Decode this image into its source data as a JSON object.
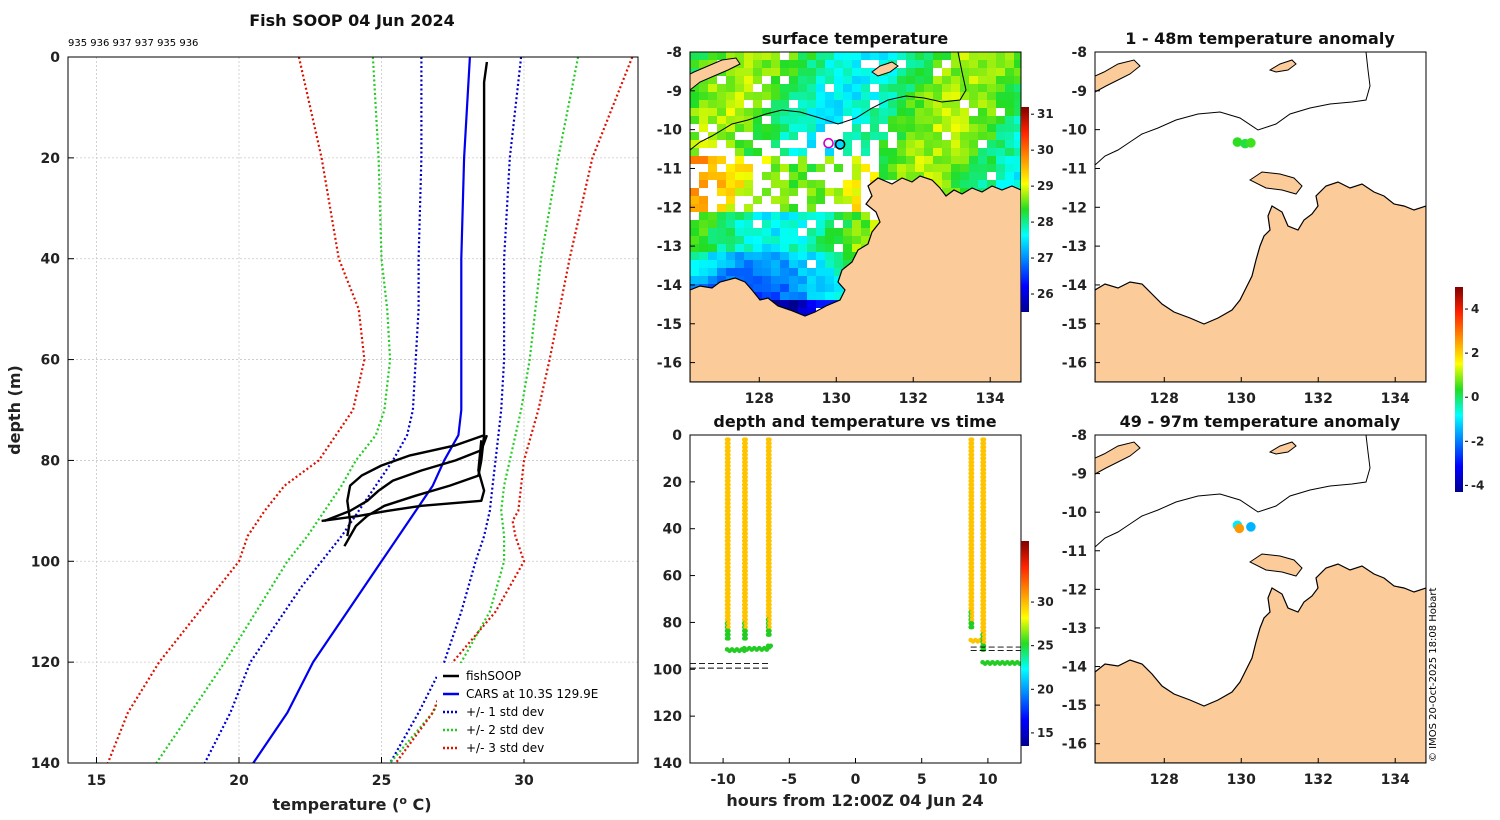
{
  "title": "Fish SOOP 04 Jun 2024",
  "drop_ids": "935 936 937 937 935 936",
  "credit": "© IMOS 20-Oct-2025 18:08 Hobart",
  "colors": {
    "land": "#fbcb9a",
    "black": "#000000",
    "cars": "#0000ee",
    "std1": "#0000cc",
    "std2": "#22cc22",
    "std3": "#dd1100",
    "profile": "#000000"
  },
  "chart_data": [
    {
      "type": "line",
      "id": "profile",
      "xlabel": "temperature (o C)",
      "xlabel_main": "temperature (",
      "xlabel_sup": "o",
      "xlabel_tail": " C)",
      "ylabel": "depth (m)",
      "xlim": [
        14,
        34
      ],
      "ylim": [
        140,
        0
      ],
      "xticks": [
        "15",
        "20",
        "25",
        "30"
      ],
      "yticks": [
        "0",
        "20",
        "40",
        "60",
        "80",
        "100",
        "120",
        "140"
      ],
      "legend_location": "bottom-right",
      "legend": [
        "fishSOOP",
        "CARS at 10.3S 129.9E",
        "+/- 1 std dev",
        "+/- 2 std dev",
        "+/- 3 std dev"
      ],
      "series": [
        {
          "name": "CARS at 10.3S 129.9E",
          "style": "solid",
          "color": "#0000ee",
          "depth": [
            0,
            10,
            20,
            40,
            60,
            70,
            75,
            80,
            85,
            90,
            95,
            100,
            105,
            110,
            115,
            120,
            130,
            140
          ],
          "temp": [
            28.1,
            28.0,
            27.9,
            27.8,
            27.8,
            27.8,
            27.7,
            27.2,
            26.8,
            26.2,
            25.6,
            25.0,
            24.4,
            23.8,
            23.2,
            22.6,
            21.7,
            20.5
          ]
        },
        {
          "name": "+/- 1 std dev (low)",
          "style": "dotted",
          "color": "#0000cc",
          "depth": [
            0,
            20,
            40,
            50,
            60,
            70,
            75,
            80,
            85,
            90,
            95,
            100,
            105,
            110,
            115,
            120,
            130,
            140
          ],
          "temp": [
            26.4,
            26.4,
            26.3,
            26.3,
            26.2,
            26.1,
            25.9,
            25.4,
            24.8,
            24.2,
            23.6,
            22.9,
            22.2,
            21.6,
            21.0,
            20.4,
            19.7,
            18.8
          ]
        },
        {
          "name": "+/- 1 std dev (high)",
          "style": "dotted",
          "color": "#0000cc",
          "depth": [
            0,
            20,
            40,
            60,
            70,
            75,
            80,
            85,
            90,
            95,
            100,
            110,
            120,
            130,
            140
          ],
          "temp": [
            29.9,
            29.5,
            29.3,
            29.3,
            29.2,
            29.1,
            29.0,
            28.9,
            28.8,
            28.6,
            28.3,
            27.8,
            27.2,
            26.3,
            25.3
          ]
        },
        {
          "name": "+/- 2 std dev (low)",
          "style": "dotted",
          "color": "#22cc22",
          "depth": [
            0,
            20,
            40,
            50,
            60,
            70,
            75,
            80,
            85,
            90,
            95,
            100,
            110,
            120,
            130,
            140
          ],
          "temp": [
            24.7,
            24.9,
            25.0,
            25.2,
            25.3,
            25.1,
            24.8,
            24.1,
            23.6,
            23.0,
            22.4,
            21.7,
            20.6,
            19.5,
            18.3,
            17.1
          ]
        },
        {
          "name": "+/- 2 std dev (high)",
          "style": "dotted",
          "color": "#22cc22",
          "depth": [
            0,
            20,
            40,
            60,
            70,
            80,
            85,
            90,
            95,
            100,
            110,
            120,
            130,
            140
          ],
          "temp": [
            31.9,
            31.2,
            30.6,
            30.2,
            29.9,
            29.5,
            29.3,
            29.2,
            29.3,
            29.3,
            28.8,
            27.8,
            26.8,
            25.3
          ]
        },
        {
          "name": "+/- 3 std dev (low)",
          "style": "dotted",
          "color": "#dd1100",
          "depth": [
            0,
            20,
            40,
            50,
            60,
            70,
            80,
            85,
            90,
            95,
            100,
            110,
            120,
            130,
            140
          ],
          "temp": [
            22.1,
            22.9,
            23.5,
            24.2,
            24.4,
            24.0,
            22.8,
            21.6,
            20.9,
            20.3,
            20.0,
            18.6,
            17.2,
            16.1,
            15.4
          ]
        },
        {
          "name": "+/- 3 std dev (high)",
          "style": "dotted",
          "color": "#dd1100",
          "depth": [
            0,
            20,
            40,
            60,
            70,
            80,
            90,
            92,
            95,
            100,
            110,
            120,
            130,
            140
          ],
          "temp": [
            33.8,
            32.4,
            31.6,
            30.9,
            30.5,
            30.0,
            29.8,
            29.6,
            29.7,
            30.0,
            29.0,
            27.5,
            26.8,
            25.5
          ]
        },
        {
          "name": "fishSOOP drop 1",
          "style": "solid",
          "color": "#000000",
          "depth": [
            1,
            5,
            10,
            20,
            40,
            60,
            70,
            75,
            77,
            79,
            81,
            83,
            85,
            88,
            92,
            95
          ],
          "temp": [
            28.7,
            28.6,
            28.6,
            28.6,
            28.6,
            28.6,
            28.6,
            28.6,
            27.6,
            26.0,
            25.0,
            24.3,
            23.9,
            23.8,
            23.9,
            23.8
          ]
        },
        {
          "name": "fishSOOP drop 2",
          "style": "solid",
          "color": "#000000",
          "depth": [
            75,
            78,
            80,
            82,
            84,
            86,
            88,
            90,
            92
          ],
          "temp": [
            28.7,
            28.5,
            27.6,
            26.4,
            25.4,
            24.9,
            24.5,
            23.9,
            23.0
          ]
        },
        {
          "name": "fishSOOP drop 3",
          "style": "solid",
          "color": "#000000",
          "depth": [
            75,
            80,
            83,
            85,
            87,
            89,
            91,
            93,
            97
          ],
          "temp": [
            28.6,
            28.5,
            28.4,
            27.4,
            26.2,
            25.1,
            24.5,
            24.1,
            23.7
          ]
        },
        {
          "name": "fishSOOP drop 4",
          "style": "solid",
          "color": "#000000",
          "depth": [
            76,
            82,
            86,
            88,
            89,
            90,
            91,
            92
          ],
          "temp": [
            28.5,
            28.4,
            28.6,
            28.5,
            26.4,
            25.2,
            24.2,
            22.9
          ]
        }
      ]
    },
    {
      "type": "heatmap",
      "id": "sst_map",
      "title": "surface temperature",
      "xlim": [
        126.2,
        134.8
      ],
      "ylim": [
        -16.5,
        -8
      ],
      "xticks": [
        "128",
        "130",
        "132",
        "134"
      ],
      "yticks": [
        "-8",
        "-9",
        "-10",
        "-11",
        "-12",
        "-13",
        "-14",
        "-15",
        "-16"
      ],
      "colorbar_range": [
        25.5,
        31.2
      ],
      "colorbar_ticks": [
        "26",
        "27",
        "28",
        "29",
        "30",
        "31"
      ],
      "markers": [
        {
          "lon": 129.8,
          "lat": -10.35
        },
        {
          "lon": 130.1,
          "lat": -10.38
        }
      ]
    },
    {
      "type": "scatter",
      "id": "depth_time",
      "title": "depth and temperature vs time",
      "xlabel": "hours from 12:00Z 04 Jun 24",
      "xlim": [
        -12.5,
        12.5
      ],
      "ylim": [
        140,
        0
      ],
      "xticks": [
        "-10",
        "-5",
        "0",
        "5",
        "10"
      ],
      "yticks": [
        "0",
        "20",
        "40",
        "60",
        "80",
        "100",
        "120",
        "140"
      ],
      "colorbar_range": [
        13.5,
        37
      ],
      "colorbar_ticks": [
        "15",
        "20",
        "25",
        "30"
      ],
      "drops": [
        {
          "t_down": -9.7,
          "t_up": -9.6,
          "bottom_t_end": -8.4,
          "bottom": 91.5
        },
        {
          "t_down": -8.4,
          "t_up": -8.3,
          "bottom_t_end": -6.7,
          "bottom": 91.0
        },
        {
          "t_down": -6.6,
          "t_up": -6.5,
          "bottom_t_end": -6.4,
          "bottom": 90.0
        },
        {
          "t_down": 8.7,
          "t_up": 8.8,
          "bottom_t_end": 9.6,
          "bottom": 87.5
        },
        {
          "t_down": 9.6,
          "t_up": 9.7,
          "bottom_t_end": 12.4,
          "bottom": 97.0
        }
      ],
      "seabed_dashes": [
        {
          "t0": -12.5,
          "t1": -6.4,
          "d": [
            97.5,
            99.5
          ]
        },
        {
          "t0": 8.7,
          "t1": 12.5,
          "d": [
            90.5,
            92.0
          ]
        }
      ]
    },
    {
      "type": "scatter",
      "id": "anom_shallow",
      "title": "1 - 48m temperature anomaly",
      "xlim": [
        126.2,
        134.8
      ],
      "ylim": [
        -16.5,
        -8
      ],
      "xticks": [
        "128",
        "130",
        "132",
        "134"
      ],
      "yticks": [
        "-8",
        "-9",
        "-10",
        "-11",
        "-12",
        "-13",
        "-14",
        "-15",
        "-16"
      ],
      "points": [
        {
          "lon": 129.9,
          "lat": -10.32,
          "anom": 0.4
        },
        {
          "lon": 130.1,
          "lat": -10.36,
          "anom": 0.2
        },
        {
          "lon": 130.25,
          "lat": -10.34,
          "anom": 0.5
        }
      ]
    },
    {
      "type": "scatter",
      "id": "anom_deep",
      "title": "49 - 97m temperature anomaly",
      "xlim": [
        126.2,
        134.8
      ],
      "ylim": [
        -16.5,
        -8
      ],
      "xticks": [
        "128",
        "130",
        "132",
        "134"
      ],
      "yticks": [
        "-8",
        "-9",
        "-10",
        "-11",
        "-12",
        "-13",
        "-14",
        "-15",
        "-16"
      ],
      "points": [
        {
          "lon": 129.9,
          "lat": -10.34,
          "anom": -1.0
        },
        {
          "lon": 129.95,
          "lat": -10.42,
          "anom": 2.6
        },
        {
          "lon": 130.25,
          "lat": -10.38,
          "anom": -1.5
        }
      ]
    },
    {
      "type": "colorbar",
      "id": "anom_colorbar",
      "range": [
        -4.3,
        5
      ],
      "ticks": [
        "4",
        "2",
        "0",
        "-2",
        "-4"
      ]
    }
  ]
}
